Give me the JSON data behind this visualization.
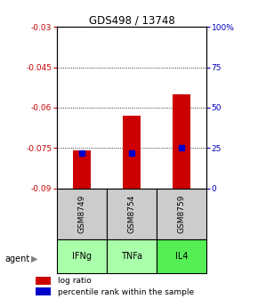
{
  "title": "GDS498 / 13748",
  "samples": [
    "GSM8749",
    "GSM8754",
    "GSM8759"
  ],
  "agents": [
    "IFNg",
    "TNFa",
    "IL4"
  ],
  "log_ratios": [
    -0.076,
    -0.063,
    -0.055
  ],
  "percentile_ranks": [
    22,
    22,
    25
  ],
  "ylim_left": [
    -0.09,
    -0.03
  ],
  "ylim_right": [
    0,
    100
  ],
  "yticks_left": [
    -0.09,
    -0.075,
    -0.06,
    -0.045,
    -0.03
  ],
  "ytick_labels_left": [
    "-0.09",
    "-0.075",
    "-0.06",
    "-0.045",
    "-0.03"
  ],
  "yticks_right": [
    0,
    25,
    50,
    75,
    100
  ],
  "ytick_labels_right": [
    "0",
    "25",
    "50",
    "75",
    "100%"
  ],
  "gridlines": [
    -0.045,
    -0.06,
    -0.075
  ],
  "bar_color": "#cc0000",
  "percentile_color": "#0000cc",
  "agent_colors": [
    "#aaffaa",
    "#aaffaa",
    "#55ee55"
  ],
  "sample_bg_color": "#cccccc",
  "left_tick_color": "#cc0000",
  "right_tick_color": "#0000bb",
  "bar_width": 0.35
}
